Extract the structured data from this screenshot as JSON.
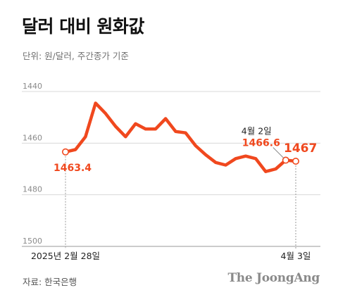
{
  "title": "달러 대비 원화값",
  "subtitle": "단위: 원/달러, 주간종가 기준",
  "source": "자료: 한국은행",
  "brand": "The JoongAng",
  "colors": {
    "line": "#f0481e",
    "grid": "#d8d8d8",
    "axis": "#9a9a9a",
    "text": "#1a1a1a"
  },
  "chart_data": {
    "type": "line",
    "title": "달러 대비 원화값",
    "ylabel": "",
    "xlabel": "",
    "y_inverted": true,
    "ylim": [
      1440,
      1500
    ],
    "yticks": [
      1440,
      1460,
      1480,
      1500
    ],
    "grid": true,
    "x_tick_labels": [
      "2025년 2월 28일",
      "4월 3일"
    ],
    "series": [
      {
        "values": [
          1463.4,
          1462.5,
          1457.5,
          1444.5,
          1448.5,
          1453.5,
          1457.5,
          1452.5,
          1454.5,
          1454.5,
          1450.5,
          1455.5,
          1456.0,
          1461.0,
          1464.5,
          1467.5,
          1468.5,
          1466.0,
          1465.0,
          1466.0,
          1471.0,
          1470.0,
          1466.6,
          1467.0
        ]
      }
    ],
    "annotations": [
      {
        "label": "1463.4"
      },
      {
        "date": "4월 2일",
        "label": "1466.6"
      },
      {
        "label": "1467"
      }
    ]
  }
}
